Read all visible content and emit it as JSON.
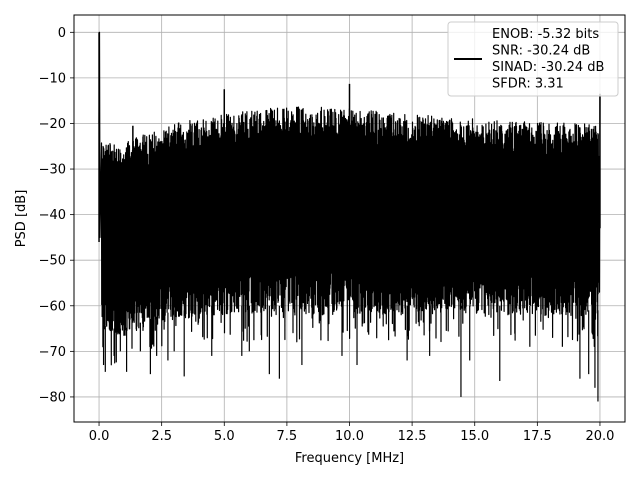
{
  "chart_data": {
    "type": "line",
    "xlabel": "Frequency [MHz]",
    "ylabel": "PSD [dB]",
    "xlim": [
      -1.0,
      21.0
    ],
    "ylim": [
      -85.5,
      3.8
    ],
    "xticks": [
      0.0,
      2.5,
      5.0,
      7.5,
      10.0,
      12.5,
      15.0,
      17.5,
      20.0
    ],
    "xtick_labels": [
      "0.0",
      "2.5",
      "5.0",
      "7.5",
      "10.0",
      "12.5",
      "15.0",
      "17.5",
      "20.0"
    ],
    "yticks": [
      0,
      -10,
      -20,
      -30,
      -40,
      -50,
      -60,
      -70,
      -80
    ],
    "ytick_labels": [
      "0",
      "−10",
      "−20",
      "−30",
      "−40",
      "−50",
      "−60",
      "−70",
      "−80"
    ],
    "grid": true,
    "legend_position": "top-right",
    "line_color": "#000000",
    "legend": {
      "lines": [
        "ENOB: -5.32 bits",
        "SNR: -30.24 dB",
        "SINAD: -30.24 dB",
        "SFDR: 3.31"
      ]
    },
    "series": [
      {
        "upper_envelope": {
          "x": [
            0.1,
            0.5,
            1.0,
            1.5,
            2.0,
            2.5,
            3.0,
            3.5,
            4.0,
            4.5,
            5.0,
            5.5,
            6.0,
            6.5,
            7.0,
            7.5,
            8.0,
            8.5,
            9.0,
            9.5,
            10.0,
            10.5,
            11.0,
            11.5,
            12.0,
            12.5,
            13.0,
            13.5,
            14.0,
            14.5,
            15.0,
            15.5,
            16.0,
            16.5,
            17.0,
            17.5,
            18.0,
            18.5,
            19.0,
            19.5,
            19.95
          ],
          "y": [
            -24,
            -24,
            -24,
            -23,
            -22,
            -21,
            -20,
            -19.5,
            -19,
            -18.5,
            -18,
            -17.5,
            -17,
            -16.8,
            -16.5,
            -16.3,
            -16.2,
            -16.2,
            -16.3,
            -16.5,
            -16.7,
            -17,
            -17.2,
            -17.5,
            -17.8,
            -18,
            -18.2,
            -18.4,
            -18.6,
            -18.8,
            -19,
            -19.2,
            -19.4,
            -19.5,
            -19.6,
            -19.7,
            -19.8,
            -19.9,
            -20,
            -20,
            -20
          ]
        },
        "lower_envelope": {
          "x": [
            0.1,
            0.5,
            1.0,
            1.5,
            2.0,
            2.5,
            3.0,
            3.5,
            4.0,
            4.5,
            5.0,
            5.5,
            6.0,
            6.5,
            7.0,
            7.5,
            8.0,
            8.5,
            9.0,
            9.5,
            10.0,
            10.5,
            11.0,
            11.5,
            12.0,
            12.5,
            13.0,
            13.5,
            14.0,
            14.5,
            15.0,
            15.5,
            16.0,
            16.5,
            17.0,
            17.5,
            18.0,
            18.5,
            19.0,
            19.5,
            19.95
          ],
          "y": [
            -66,
            -67,
            -67,
            -66,
            -65,
            -64,
            -63,
            -63,
            -62,
            -62,
            -62,
            -62,
            -62,
            -62,
            -62,
            -62,
            -62,
            -62,
            -62,
            -62,
            -62,
            -62,
            -62,
            -62,
            -62,
            -62,
            -62,
            -62,
            -62,
            -62,
            -62,
            -62,
            -62,
            -62,
            -62,
            -62,
            -62,
            -62,
            -63,
            -63,
            -63
          ]
        },
        "spikes": [
          {
            "x": 0.0,
            "y": 0.0
          },
          {
            "x": 5.0,
            "y": -12.5
          },
          {
            "x": 10.0,
            "y": -11.3
          },
          {
            "x": 20.0,
            "y": -13.5
          },
          {
            "x": 1.35,
            "y": -20.5
          }
        ],
        "deep_minima": [
          {
            "x": 0.18,
            "y": -73
          },
          {
            "x": 0.25,
            "y": -74.5
          },
          {
            "x": 0.6,
            "y": -71
          },
          {
            "x": 0.85,
            "y": -70
          },
          {
            "x": 1.1,
            "y": -74.5
          },
          {
            "x": 1.65,
            "y": -70
          },
          {
            "x": 2.05,
            "y": -75
          },
          {
            "x": 2.3,
            "y": -71
          },
          {
            "x": 2.75,
            "y": -72
          },
          {
            "x": 3.0,
            "y": -70
          },
          {
            "x": 3.4,
            "y": -75.5
          },
          {
            "x": 4.5,
            "y": -71
          },
          {
            "x": 5.7,
            "y": -71
          },
          {
            "x": 6.0,
            "y": -70
          },
          {
            "x": 6.8,
            "y": -75
          },
          {
            "x": 7.2,
            "y": -76
          },
          {
            "x": 8.1,
            "y": -73
          },
          {
            "x": 9.7,
            "y": -71
          },
          {
            "x": 10.3,
            "y": -73
          },
          {
            "x": 12.3,
            "y": -72
          },
          {
            "x": 13.2,
            "y": -71
          },
          {
            "x": 14.45,
            "y": -80
          },
          {
            "x": 14.8,
            "y": -72
          },
          {
            "x": 16.0,
            "y": -76.5
          },
          {
            "x": 17.2,
            "y": -69
          },
          {
            "x": 18.5,
            "y": -69
          },
          {
            "x": 19.2,
            "y": -76
          },
          {
            "x": 19.55,
            "y": -75
          },
          {
            "x": 19.8,
            "y": -78
          },
          {
            "x": 19.92,
            "y": -81
          }
        ]
      }
    ]
  }
}
